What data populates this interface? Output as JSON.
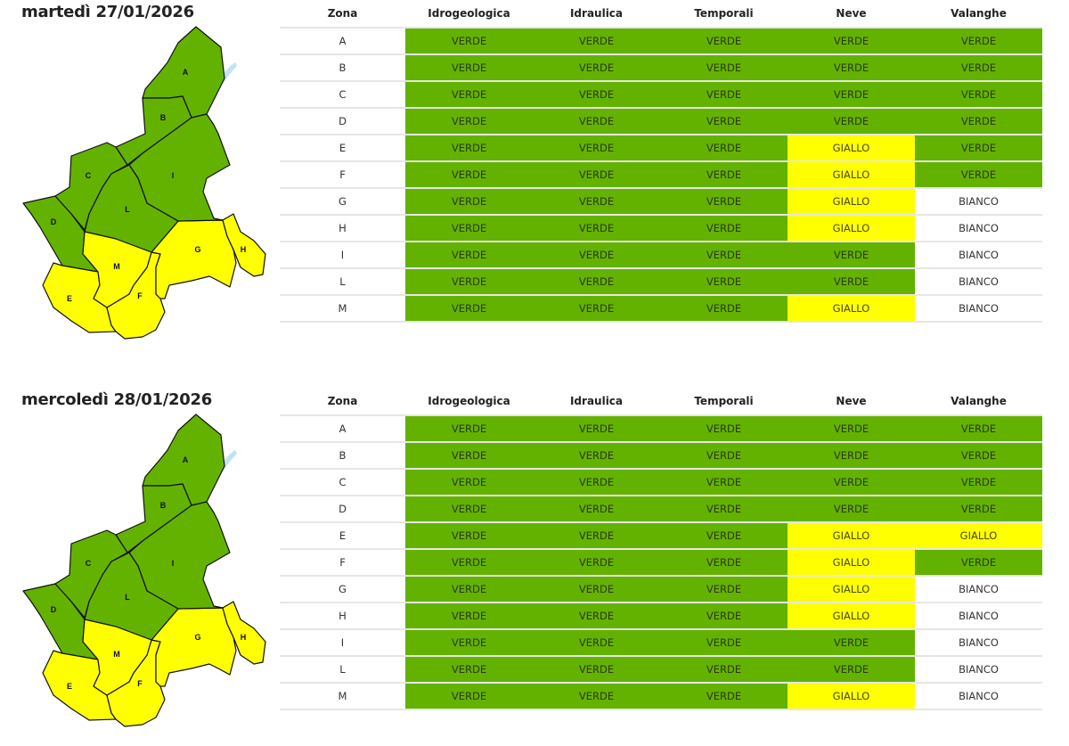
{
  "colors": {
    "VERDE": "#63b200",
    "GIALLO": "#ffff00",
    "BIANCO": "#ffffff"
  },
  "columns": [
    "Zona",
    "Idrogeologica",
    "Idraulica",
    "Temporali",
    "Neve",
    "Valanghe"
  ],
  "days": [
    {
      "title": "martedì 27/01/2026",
      "rows": [
        [
          "A",
          "VERDE",
          "VERDE",
          "VERDE",
          "VERDE",
          "VERDE"
        ],
        [
          "B",
          "VERDE",
          "VERDE",
          "VERDE",
          "VERDE",
          "VERDE"
        ],
        [
          "C",
          "VERDE",
          "VERDE",
          "VERDE",
          "VERDE",
          "VERDE"
        ],
        [
          "D",
          "VERDE",
          "VERDE",
          "VERDE",
          "VERDE",
          "VERDE"
        ],
        [
          "E",
          "VERDE",
          "VERDE",
          "VERDE",
          "GIALLO",
          "VERDE"
        ],
        [
          "F",
          "VERDE",
          "VERDE",
          "VERDE",
          "GIALLO",
          "VERDE"
        ],
        [
          "G",
          "VERDE",
          "VERDE",
          "VERDE",
          "GIALLO",
          "BIANCO"
        ],
        [
          "H",
          "VERDE",
          "VERDE",
          "VERDE",
          "GIALLO",
          "BIANCO"
        ],
        [
          "I",
          "VERDE",
          "VERDE",
          "VERDE",
          "VERDE",
          "BIANCO"
        ],
        [
          "L",
          "VERDE",
          "VERDE",
          "VERDE",
          "VERDE",
          "BIANCO"
        ],
        [
          "M",
          "VERDE",
          "VERDE",
          "VERDE",
          "GIALLO",
          "BIANCO"
        ]
      ]
    },
    {
      "title": "mercoledì 28/01/2026",
      "rows": [
        [
          "A",
          "VERDE",
          "VERDE",
          "VERDE",
          "VERDE",
          "VERDE"
        ],
        [
          "B",
          "VERDE",
          "VERDE",
          "VERDE",
          "VERDE",
          "VERDE"
        ],
        [
          "C",
          "VERDE",
          "VERDE",
          "VERDE",
          "VERDE",
          "VERDE"
        ],
        [
          "D",
          "VERDE",
          "VERDE",
          "VERDE",
          "VERDE",
          "VERDE"
        ],
        [
          "E",
          "VERDE",
          "VERDE",
          "VERDE",
          "GIALLO",
          "GIALLO"
        ],
        [
          "F",
          "VERDE",
          "VERDE",
          "VERDE",
          "GIALLO",
          "VERDE"
        ],
        [
          "G",
          "VERDE",
          "VERDE",
          "VERDE",
          "GIALLO",
          "BIANCO"
        ],
        [
          "H",
          "VERDE",
          "VERDE",
          "VERDE",
          "GIALLO",
          "BIANCO"
        ],
        [
          "I",
          "VERDE",
          "VERDE",
          "VERDE",
          "VERDE",
          "BIANCO"
        ],
        [
          "L",
          "VERDE",
          "VERDE",
          "VERDE",
          "VERDE",
          "BIANCO"
        ],
        [
          "M",
          "VERDE",
          "VERDE",
          "VERDE",
          "GIALLO",
          "BIANCO"
        ]
      ]
    }
  ]
}
